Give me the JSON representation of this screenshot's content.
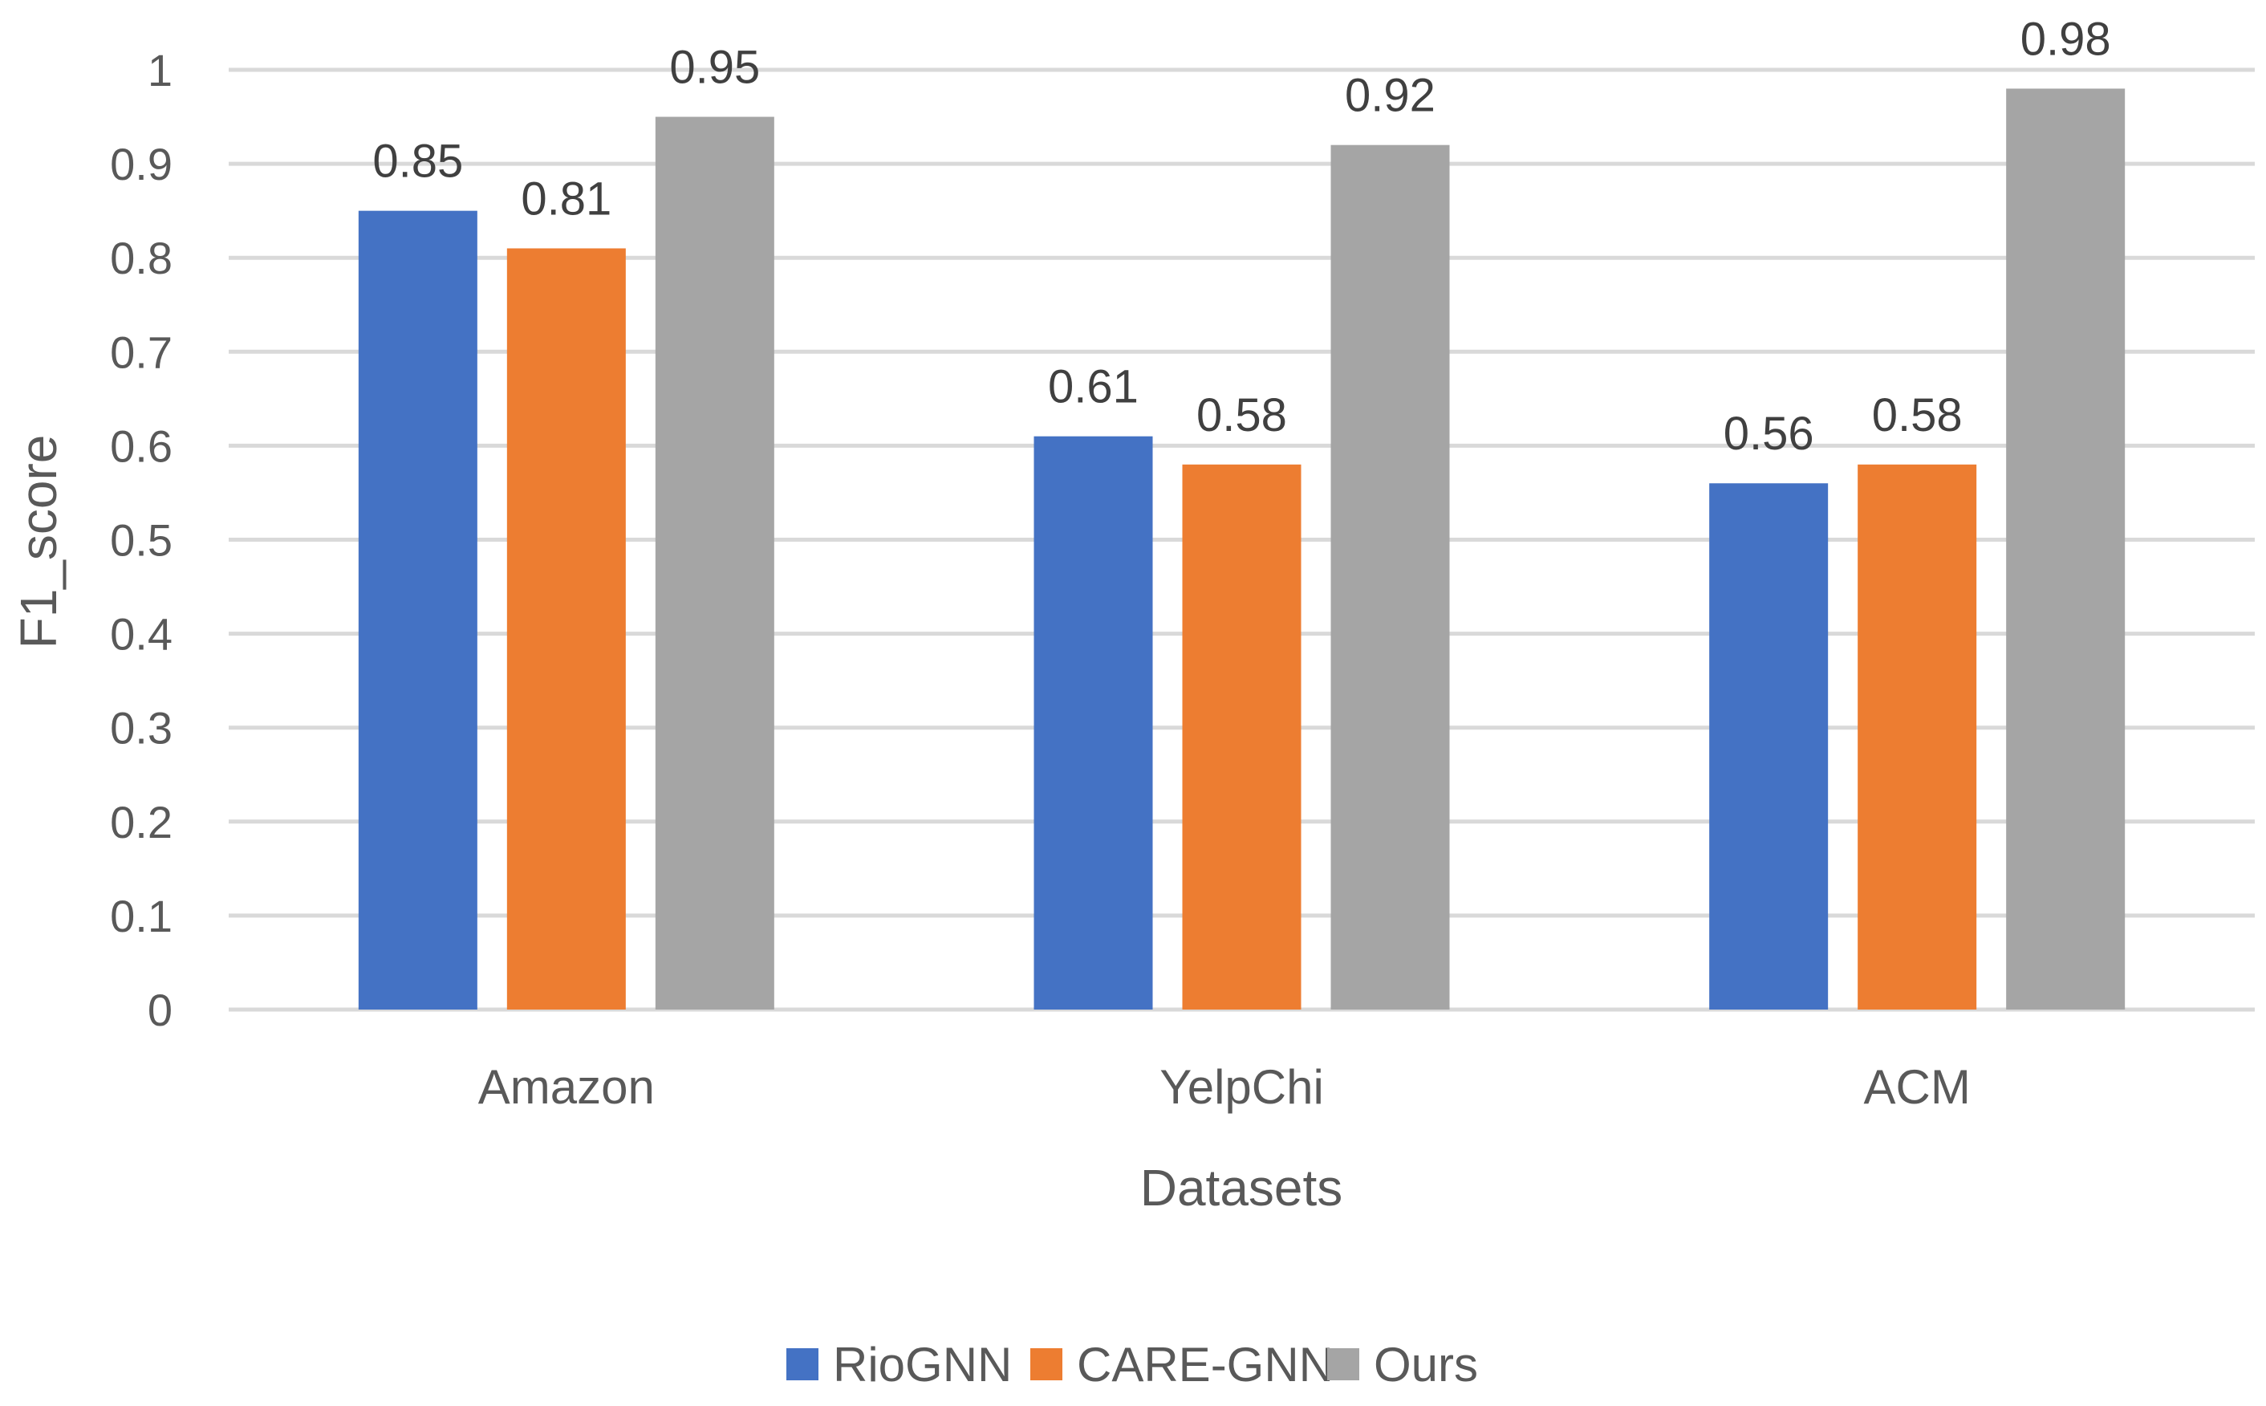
{
  "chart_data": {
    "type": "bar",
    "title": "",
    "xlabel": "Datasets",
    "ylabel": "F1_score",
    "ylim": [
      0,
      1
    ],
    "yticks": [
      "0",
      "0.1",
      "0.2",
      "0.3",
      "0.4",
      "0.5",
      "0.6",
      "0.7",
      "0.8",
      "0.9",
      "1"
    ],
    "grid": true,
    "legend_position": "bottom",
    "categories": [
      "Amazon",
      "YelpChi",
      "ACM"
    ],
    "series": [
      {
        "name": "RioGNN",
        "color": "#4472C4",
        "values": [
          0.85,
          0.61,
          0.56
        ]
      },
      {
        "name": "CARE-GNN",
        "color": "#ED7D31",
        "values": [
          0.81,
          0.58,
          0.58
        ]
      },
      {
        "name": "Ours",
        "color": "#A5A5A5",
        "values": [
          0.95,
          0.92,
          0.98
        ]
      }
    ]
  }
}
